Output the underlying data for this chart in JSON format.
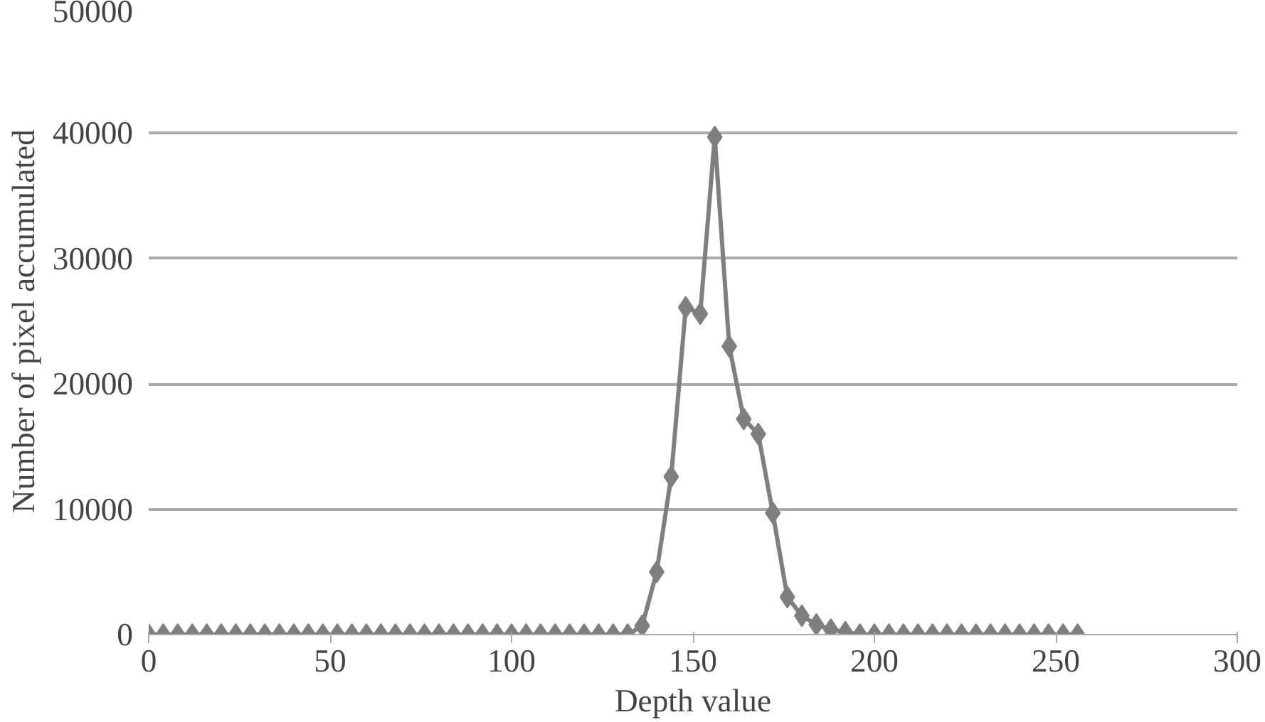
{
  "chart_data": {
    "type": "line",
    "xlabel": "Depth value",
    "ylabel": "Number of pixel accumulated",
    "x": [
      0,
      4,
      8,
      12,
      16,
      20,
      24,
      28,
      32,
      36,
      40,
      44,
      48,
      52,
      56,
      60,
      64,
      68,
      72,
      76,
      80,
      84,
      88,
      92,
      96,
      100,
      104,
      108,
      112,
      116,
      120,
      124,
      128,
      132,
      136,
      140,
      144,
      148,
      152,
      156,
      160,
      164,
      168,
      172,
      176,
      180,
      184,
      188,
      192,
      196,
      200,
      204,
      208,
      212,
      216,
      220,
      224,
      228,
      232,
      236,
      240,
      244,
      248,
      252,
      256
    ],
    "series": [
      {
        "color": "#7f7f7f",
        "values": [
          0,
          0,
          0,
          0,
          0,
          0,
          0,
          0,
          0,
          0,
          0,
          0,
          0,
          0,
          0,
          0,
          0,
          0,
          0,
          0,
          0,
          0,
          0,
          0,
          0,
          0,
          0,
          0,
          0,
          0,
          0,
          0,
          0,
          0,
          700,
          5000,
          12600,
          26100,
          25600,
          39700,
          23000,
          17200,
          16000,
          9700,
          3000,
          1500,
          800,
          400,
          200,
          0,
          0,
          0,
          0,
          0,
          0,
          0,
          0,
          0,
          0,
          0,
          0,
          0,
          0,
          0,
          0
        ]
      }
    ],
    "xlim": [
      0,
      300
    ],
    "xticks": [
      0,
      50,
      100,
      150,
      200,
      250,
      300
    ],
    "ylim": [
      0,
      50000
    ],
    "yticks": [
      0,
      10000,
      20000,
      30000,
      40000,
      50000
    ],
    "grid": "y",
    "marker": "diamond",
    "line_style": "solid"
  }
}
